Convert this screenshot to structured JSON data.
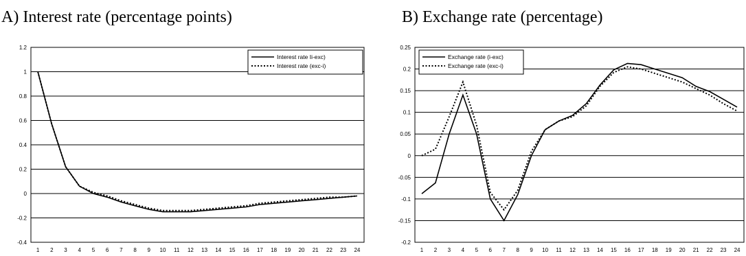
{
  "chart_data": [
    {
      "type": "line",
      "title": "A) Interest rate (percentage points)",
      "xlabel": "",
      "ylabel": "",
      "x": [
        1,
        2,
        3,
        4,
        5,
        6,
        7,
        8,
        9,
        10,
        11,
        12,
        13,
        14,
        15,
        16,
        17,
        18,
        19,
        20,
        21,
        22,
        23,
        24
      ],
      "ylim": [
        -0.4,
        1.2
      ],
      "yticks": [
        1.2,
        1,
        0.8,
        0.6,
        0.4,
        0.2,
        0,
        -0.2,
        -0.4
      ],
      "grid": "horizontal",
      "legend_position": "top-right",
      "series": [
        {
          "name": "Interest rate Ii-exc)",
          "style": "solid",
          "color": "#000000",
          "values": [
            1.0,
            0.57,
            0.22,
            0.06,
            0.0,
            -0.03,
            -0.07,
            -0.1,
            -0.13,
            -0.15,
            -0.15,
            -0.15,
            -0.14,
            -0.13,
            -0.12,
            -0.11,
            -0.09,
            -0.08,
            -0.07,
            -0.06,
            -0.05,
            -0.04,
            -0.03,
            -0.02
          ]
        },
        {
          "name": "Interest rate (exc-i)",
          "style": "dotted",
          "color": "#000000",
          "values": [
            1.0,
            0.57,
            0.22,
            0.06,
            0.01,
            -0.02,
            -0.06,
            -0.09,
            -0.12,
            -0.14,
            -0.14,
            -0.14,
            -0.13,
            -0.12,
            -0.11,
            -0.1,
            -0.08,
            -0.07,
            -0.06,
            -0.05,
            -0.04,
            -0.03,
            -0.03,
            -0.02
          ]
        }
      ]
    },
    {
      "type": "line",
      "title": "B) Exchange rate (percentage)",
      "xlabel": "",
      "ylabel": "",
      "x": [
        1,
        2,
        3,
        4,
        5,
        6,
        7,
        8,
        9,
        10,
        11,
        12,
        13,
        14,
        15,
        16,
        17,
        18,
        19,
        20,
        21,
        22,
        23,
        24
      ],
      "ylim": [
        -0.2,
        0.25
      ],
      "yticks": [
        0.25,
        0.2,
        0.15,
        0.1,
        0.05,
        0,
        -0.05,
        -0.1,
        -0.15,
        -0.2
      ],
      "grid": "horizontal",
      "legend_position": "top-left",
      "series": [
        {
          "name": "Exchange rate (i-exc)",
          "style": "solid",
          "color": "#000000",
          "values": [
            -0.088,
            -0.063,
            0.05,
            0.14,
            0.05,
            -0.1,
            -0.15,
            -0.09,
            0.0,
            0.06,
            0.08,
            0.093,
            0.12,
            0.163,
            0.198,
            0.213,
            0.21,
            0.2,
            0.19,
            0.18,
            0.16,
            0.148,
            0.13,
            0.112
          ]
        },
        {
          "name": "Exchange rate (exc-i)",
          "style": "dotted",
          "color": "#000000",
          "values": [
            0.0,
            0.015,
            0.09,
            0.17,
            0.07,
            -0.085,
            -0.125,
            -0.08,
            0.01,
            0.06,
            0.08,
            0.09,
            0.115,
            0.16,
            0.192,
            0.205,
            0.2,
            0.19,
            0.18,
            0.17,
            0.155,
            0.14,
            0.12,
            0.103
          ]
        }
      ]
    }
  ]
}
